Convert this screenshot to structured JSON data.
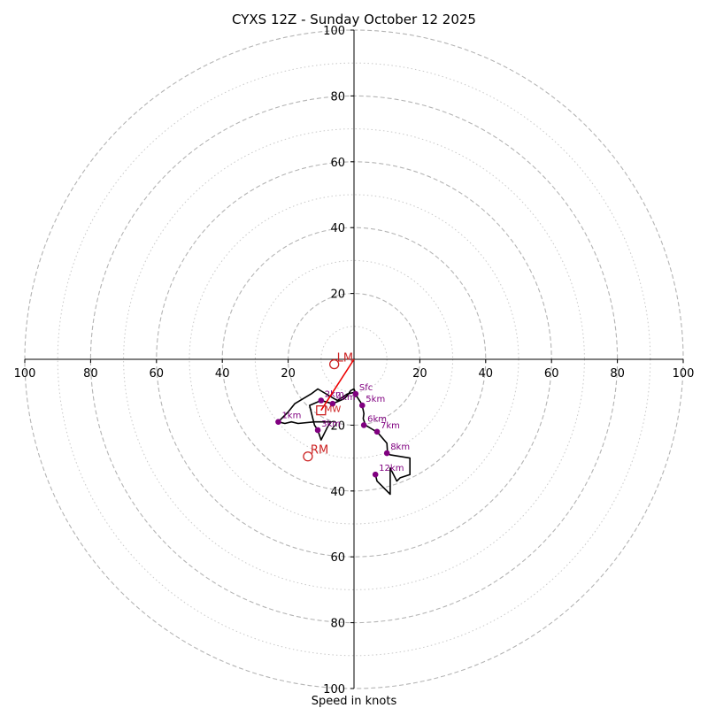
{
  "chart_data": {
    "type": "line",
    "title": "CYXS 12Z - Sunday October 12 2025",
    "xlabel": "Speed in knots",
    "ylabel": "",
    "xlim": [
      -100,
      100
    ],
    "ylim": [
      -100,
      100
    ],
    "ring_major": [
      20,
      40,
      60,
      80,
      100
    ],
    "ring_minor": [
      10,
      30,
      50,
      70,
      90
    ],
    "x_ticks": [
      "100",
      "80",
      "60",
      "40",
      "20",
      "20",
      "40",
      "60",
      "80",
      "100"
    ],
    "x_tick_values": [
      -100,
      -80,
      -60,
      -40,
      -20,
      20,
      40,
      60,
      80,
      100
    ],
    "y_ticks": [
      "100",
      "80",
      "60",
      "40",
      "20",
      "20",
      "40",
      "60",
      "80",
      "100"
    ],
    "y_tick_values": [
      100,
      80,
      60,
      40,
      20,
      -20,
      -40,
      -60,
      -80,
      -100
    ],
    "trace_color": "#000000",
    "marker_color": "#800080",
    "motion_color": "#cc2222",
    "trace": [
      [
        0.5,
        -11.5
      ],
      [
        0.3,
        -10
      ],
      [
        -2,
        -10.5
      ],
      [
        -5,
        -12.5
      ],
      [
        -6,
        -12
      ],
      [
        -11,
        -9
      ],
      [
        -13,
        -10.5
      ],
      [
        -18,
        -13.5
      ],
      [
        -20,
        -16
      ],
      [
        -23,
        -19
      ],
      [
        -21,
        -19.5
      ],
      [
        -19,
        -19
      ],
      [
        -17,
        -19.5
      ],
      [
        -12,
        -19
      ],
      [
        -7,
        -19
      ],
      [
        -8,
        -20.5
      ],
      [
        -9,
        -22.5
      ],
      [
        -10,
        -24.5
      ],
      [
        -11,
        -21.5
      ],
      [
        -12,
        -20
      ],
      [
        -12.5,
        -18
      ],
      [
        -13.5,
        -14
      ],
      [
        -10,
        -12.5
      ],
      [
        -6.5,
        -13.5
      ],
      [
        -3,
        -12
      ],
      [
        -2,
        -11
      ],
      [
        -1,
        -9.5
      ],
      [
        0,
        -9
      ],
      [
        1,
        -11.5
      ],
      [
        2,
        -13
      ],
      [
        2.5,
        -14
      ],
      [
        3,
        -16.5
      ],
      [
        2.8,
        -18
      ],
      [
        3.5,
        -20
      ],
      [
        6,
        -21.5
      ],
      [
        7,
        -22
      ],
      [
        10,
        -25.5
      ],
      [
        10.2,
        -28.5
      ],
      [
        11,
        -29
      ],
      [
        17,
        -30
      ],
      [
        17,
        -35
      ],
      [
        14,
        -36
      ],
      [
        13,
        -37
      ],
      [
        11,
        -33
      ],
      [
        11,
        -41
      ],
      [
        9,
        -39
      ],
      [
        7,
        -37
      ],
      [
        6.5,
        -35
      ]
    ],
    "points": [
      {
        "label": "Sfc",
        "x": 0.5,
        "y": -10.5
      },
      {
        "label": "1km",
        "x": -23,
        "y": -19
      },
      {
        "label": "2km",
        "x": -10,
        "y": -12.5
      },
      {
        "label": "3km",
        "x": -11,
        "y": -21.5
      },
      {
        "label": "4km",
        "x": -6.5,
        "y": -13.5
      },
      {
        "label": "5km",
        "x": 2.5,
        "y": -14
      },
      {
        "label": "6km",
        "x": 3,
        "y": -20
      },
      {
        "label": "7km",
        "x": 7,
        "y": -22
      },
      {
        "label": "8km",
        "x": 10,
        "y": -28.5
      },
      {
        "label": "12km",
        "x": 6.5,
        "y": -35
      }
    ],
    "storm_motion": [
      {
        "label": "LM",
        "x": -6,
        "y": -1.5
      },
      {
        "label": "RM",
        "x": -14,
        "y": -29.5
      }
    ],
    "mean_wind": {
      "label": "MW",
      "x": -10,
      "y": -15.5
    },
    "motion_vector": {
      "from": [
        0,
        0
      ],
      "to": [
        -10,
        -15.5
      ]
    }
  }
}
